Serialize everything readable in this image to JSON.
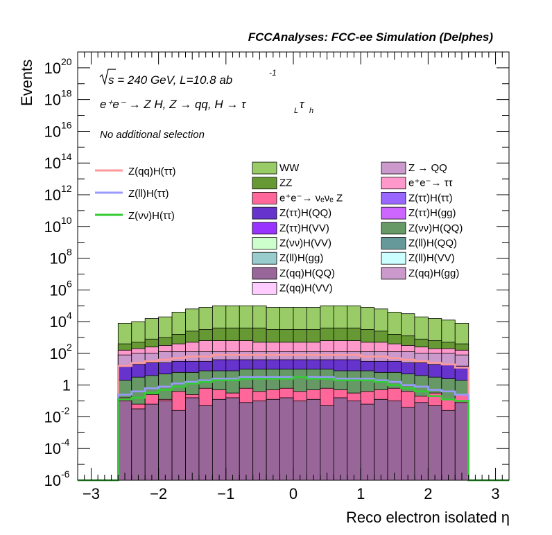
{
  "chart_data": {
    "type": "area",
    "title": "FCCAnalyses: FCC-ee Simulation (Delphes)",
    "xlabel": "Reco electron isolated η",
    "ylabel": "Events",
    "xlim": [
      -3.2,
      3.2
    ],
    "ylim_log10": [
      -6,
      21
    ],
    "y_scale": "log",
    "grid": false,
    "annotations": {
      "sqrt_s": "s = 240 GeV, L=10.8 ab",
      "lumi_exp": "-1",
      "process": "e⁺e⁻ → Z H, Z → qq, H → τ",
      "sub_L": "L",
      "tau2": "τ",
      "sub_h": "h",
      "selection": "No additional selection"
    },
    "x_ticks": [
      "−3",
      "−2",
      "−1",
      "0",
      "1",
      "2",
      "3"
    ],
    "y_ticks": [
      {
        "base": "10",
        "exp": "20",
        "log": 20
      },
      {
        "base": "10",
        "exp": "18",
        "log": 18
      },
      {
        "base": "10",
        "exp": "16",
        "log": 16
      },
      {
        "base": "10",
        "exp": "14",
        "log": 14
      },
      {
        "base": "10",
        "exp": "12",
        "log": 12
      },
      {
        "base": "10",
        "exp": "10",
        "log": 10
      },
      {
        "base": "10",
        "exp": "8",
        "log": 8
      },
      {
        "base": "10",
        "exp": "6",
        "log": 6
      },
      {
        "base": "10",
        "exp": "4",
        "log": 4
      },
      {
        "base": "10",
        "exp": "2",
        "log": 2
      },
      {
        "base": "1",
        "exp": "",
        "log": 0
      },
      {
        "base": "10",
        "exp": "-2",
        "log": -2
      },
      {
        "base": "10",
        "exp": "-4",
        "log": -4
      },
      {
        "base": "10",
        "exp": "-6",
        "log": -6
      }
    ],
    "bins": {
      "start": -2.6,
      "width": 0.2,
      "count": 26
    },
    "stack_totals_log10": {
      "WW": [
        3.9,
        4.0,
        4.2,
        4.3,
        4.6,
        4.8,
        4.9,
        5.0,
        5.0,
        5.0,
        5.0,
        4.9,
        4.9,
        4.9,
        4.9,
        5.0,
        5.0,
        5.0,
        4.9,
        4.8,
        4.6,
        4.5,
        4.3,
        4.2,
        4.1,
        3.9
      ],
      "ZZ": [
        2.6,
        2.7,
        2.9,
        3.0,
        3.2,
        3.4,
        3.5,
        3.6,
        3.6,
        3.6,
        3.6,
        3.5,
        3.5,
        3.5,
        3.5,
        3.6,
        3.6,
        3.6,
        3.5,
        3.4,
        3.2,
        3.1,
        2.9,
        2.8,
        2.7,
        2.6
      ],
      "QQ_tt": [
        2.2,
        2.3,
        2.4,
        2.5,
        2.6,
        2.7,
        2.8,
        2.8,
        2.8,
        2.8,
        2.7,
        2.7,
        2.7,
        2.7,
        2.7,
        2.8,
        2.8,
        2.8,
        2.7,
        2.7,
        2.6,
        2.5,
        2.4,
        2.3,
        2.3,
        2.2
      ],
      "Zqq_gg": [
        1.9,
        2.0,
        2.0,
        2.1,
        2.1,
        2.1,
        2.1,
        2.1,
        2.1,
        2.1,
        2.1,
        2.1,
        2.1,
        2.1,
        2.1,
        2.1,
        2.1,
        2.1,
        2.1,
        2.1,
        2.1,
        2.1,
        2.0,
        2.0,
        2.0,
        1.9
      ],
      "others": [
        1.2,
        1.3,
        1.4,
        1.4,
        1.5,
        1.5,
        1.5,
        1.6,
        1.6,
        1.6,
        1.6,
        1.6,
        1.6,
        1.6,
        1.6,
        1.6,
        1.6,
        1.6,
        1.5,
        1.5,
        1.5,
        1.4,
        1.4,
        1.3,
        1.3,
        1.2
      ],
      "Zvv_QQ": [
        0.3,
        0.5,
        0.6,
        0.7,
        0.8,
        0.8,
        0.9,
        0.9,
        0.9,
        1.0,
        1.0,
        1.0,
        1.0,
        1.0,
        1.0,
        1.0,
        0.9,
        0.9,
        0.9,
        0.8,
        0.8,
        0.7,
        0.6,
        0.5,
        0.4,
        0.3
      ],
      "enunuZ": [
        -0.8,
        -1.2,
        -0.6,
        -0.9,
        -0.4,
        -0.6,
        -0.2,
        -0.3,
        -0.5,
        -0.2,
        -0.4,
        -0.3,
        -0.2,
        -0.4,
        -0.3,
        -0.2,
        -0.3,
        -0.5,
        -0.4,
        -0.3,
        -0.2,
        -0.4,
        -0.7,
        -0.5,
        -0.9,
        -0.6
      ],
      "Zqq_QQ": [
        -1.0,
        -1.5,
        -1.2,
        -1.0,
        -1.6,
        -0.8,
        -1.3,
        -0.9,
        -0.8,
        -1.1,
        -1.0,
        -0.9,
        -0.8,
        -1.0,
        -0.9,
        -1.3,
        -0.8,
        -1.0,
        -1.2,
        -0.9,
        -1.0,
        -1.4,
        -1.1,
        -1.3,
        -1.6,
        -1.1
      ]
    },
    "lines_log10": {
      "Zqq_Htt": [
        1.2,
        1.4,
        1.5,
        1.6,
        1.7,
        1.8,
        1.8,
        1.9,
        1.9,
        1.9,
        1.9,
        1.9,
        1.9,
        1.9,
        1.9,
        1.9,
        1.9,
        1.9,
        1.8,
        1.8,
        1.7,
        1.6,
        1.5,
        1.4,
        1.3,
        1.1
      ],
      "Zll_Htt": [
        -0.6,
        -0.4,
        -0.2,
        -0.1,
        0.1,
        0.2,
        0.3,
        0.4,
        0.4,
        0.5,
        0.5,
        0.5,
        0.5,
        0.5,
        0.5,
        0.5,
        0.4,
        0.4,
        0.4,
        0.3,
        0.2,
        0.0,
        -0.1,
        -0.3,
        -0.4,
        -0.6
      ],
      "Zvv_Htt": [
        -0.9,
        -0.8,
        -0.5,
        -0.3,
        -0.1,
        0.1,
        0.2,
        0.3,
        0.3,
        0.4,
        0.4,
        0.4,
        0.4,
        0.5,
        0.4,
        0.4,
        0.3,
        0.3,
        0.3,
        0.2,
        0.0,
        -0.2,
        -0.4,
        -0.7,
        -0.9,
        -1.0
      ]
    },
    "legend_lines": [
      {
        "name": "Z(qq)H(ττ)",
        "color": "#ff9999"
      },
      {
        "name": "Z(ll)H(ττ)",
        "color": "#9999ff"
      },
      {
        "name": "Z(νν)H(ττ)",
        "color": "#33cc33"
      }
    ],
    "legend_col1": [
      {
        "name": "WW",
        "color": "#99cc66"
      },
      {
        "name": "ZZ",
        "color": "#669933"
      },
      {
        "name": "e⁺e⁻→ νₑνₑ Z",
        "color": "#ff6699"
      },
      {
        "name": "Z(ττ)H(QQ)",
        "color": "#6633cc"
      },
      {
        "name": "Z(ττ)H(VV)",
        "color": "#9933ff"
      },
      {
        "name": "Z(νν)H(VV)",
        "color": "#ccffcc"
      },
      {
        "name": "Z(ll)H(gg)",
        "color": "#99cccc"
      },
      {
        "name": "Z(qq)H(QQ)",
        "color": "#996699"
      },
      {
        "name": "Z(qq)H(VV)",
        "color": "#ffccff"
      }
    ],
    "legend_col2": [
      {
        "name": "Z → QQ",
        "color": "#cc99cc"
      },
      {
        "name": "e⁺e⁻→ ττ",
        "color": "#ff99cc"
      },
      {
        "name": "Z(ττ)H(ττ)",
        "color": "#9966ff"
      },
      {
        "name": "Z(ττ)H(gg)",
        "color": "#cc66ff"
      },
      {
        "name": "Z(νν)H(QQ)",
        "color": "#669966"
      },
      {
        "name": "Z(ll)H(QQ)",
        "color": "#669999"
      },
      {
        "name": "Z(ll)H(VV)",
        "color": "#ccffff"
      },
      {
        "name": "Z(qq)H(gg)",
        "color": "#cc99cc"
      }
    ]
  }
}
